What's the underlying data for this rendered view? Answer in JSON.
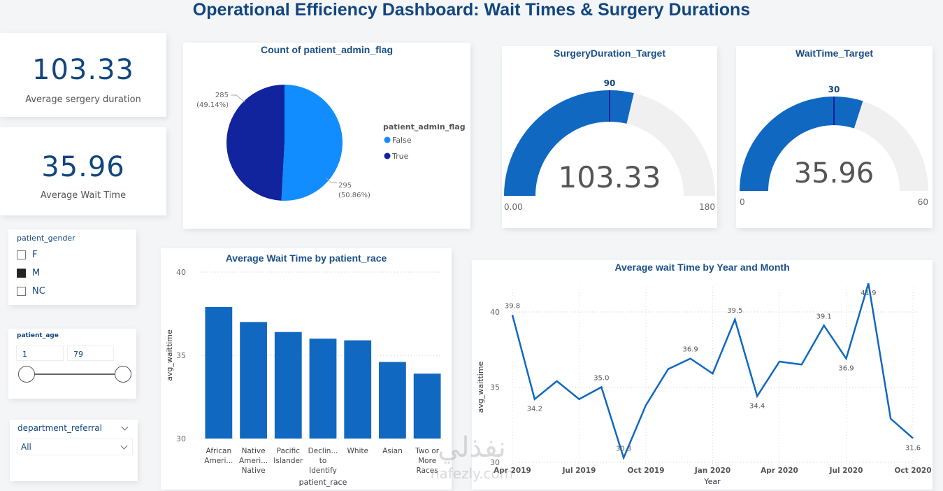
{
  "header": {
    "title": "Operational Efficiency Dashboard: Wait Times & Surgery Durations"
  },
  "kpis": [
    {
      "value": "103.33",
      "label": "Average sergery duration"
    },
    {
      "value": "35.96",
      "label": "Average Wait Time"
    }
  ],
  "slicers": {
    "gender": {
      "title": "patient_gender",
      "options": [
        {
          "label": "F",
          "checked": false
        },
        {
          "label": "M",
          "checked": true
        },
        {
          "label": "NC",
          "checked": false
        }
      ]
    },
    "age": {
      "title": "patient_age",
      "min_value": "1",
      "max_value": "79"
    },
    "department": {
      "title": "department_referral",
      "selected": "All"
    }
  },
  "colors": {
    "primary": "#1168c0",
    "light_blue": "#118dff",
    "dark_navy": "#12239e",
    "title_blue": "#12467e",
    "gauge_bg": "#f0f0f0"
  },
  "watermark": {
    "text": "nafezly.com"
  },
  "chart_data": [
    {
      "id": "pie",
      "type": "pie",
      "title": "Count of patient_admin_flag",
      "legend_title": "patient_admin_flag",
      "legend_position": "right",
      "slices": [
        {
          "label": "False",
          "value": 295,
          "percent": "50.86%",
          "color": "#118dff"
        },
        {
          "label": "True",
          "value": 285,
          "percent": "49.14%",
          "color": "#12239e"
        }
      ],
      "data_labels": [
        "295",
        "(50.86%)",
        "285",
        "(49.14%)"
      ]
    },
    {
      "id": "gauge_surgery",
      "type": "gauge",
      "title": "SurgeryDuration_Target",
      "value": 103.33,
      "value_label": "103.33",
      "min": 0,
      "min_label": "0.00",
      "max": 180,
      "max_label": "180",
      "target": 90,
      "target_label": "90"
    },
    {
      "id": "gauge_wait",
      "type": "gauge",
      "title": "WaitTime_Target",
      "value": 35.96,
      "value_label": "35.96",
      "min": 0,
      "min_label": "0",
      "max": 60,
      "max_label": "60",
      "target": 30,
      "target_label": "30"
    },
    {
      "id": "bar",
      "type": "bar",
      "title": "Average Wait Time by patient_race",
      "xlabel": "patient_race",
      "ylabel": "avg_waittime",
      "ylim": [
        30,
        40
      ],
      "yticks": [
        "30",
        "35",
        "40"
      ],
      "grid": true,
      "categories": [
        [
          "African",
          "Ameri..."
        ],
        [
          "Native",
          "Ameri...",
          "Native"
        ],
        [
          "Pacific",
          "Islander"
        ],
        [
          "Declin...",
          "to",
          "Identify"
        ],
        [
          "White"
        ],
        [
          "Asian"
        ],
        [
          "Two or",
          "More",
          "Races"
        ]
      ],
      "values": [
        37.9,
        37.0,
        36.4,
        36.0,
        35.9,
        34.6,
        33.9
      ]
    },
    {
      "id": "line",
      "type": "line",
      "title": "Average wait Time by Year and Month",
      "xlabel": "Year",
      "ylabel": "avg_waittime",
      "ylim": [
        30,
        42
      ],
      "yticks": [
        "30",
        "35",
        "40"
      ],
      "grid": true,
      "x": [
        "Apr 2019",
        "May 2019",
        "Jun 2019",
        "Jul 2019",
        "Aug 2019",
        "Sep 2019",
        "Oct 2019",
        "Nov 2019",
        "Dec 2019",
        "Jan 2020",
        "Feb 2020",
        "Mar 2020",
        "Apr 2020",
        "May 2020",
        "Jun 2020",
        "Jul 2020",
        "Aug 2020",
        "Sep 2020",
        "Oct 2020"
      ],
      "xtick_labels": [
        "Apr 2019",
        "Jul 2019",
        "Oct 2019",
        "Jan 2020",
        "Apr 2020",
        "Jul 2020",
        "Oct 2020"
      ],
      "values": [
        39.8,
        34.2,
        35.4,
        34.2,
        35.0,
        30.3,
        33.8,
        36.2,
        36.9,
        35.9,
        39.5,
        34.4,
        36.7,
        36.5,
        39.1,
        36.9,
        41.9,
        32.9,
        31.6
      ],
      "point_labels": [
        {
          "index": 0,
          "text": "39.8",
          "pos": "above"
        },
        {
          "index": 1,
          "text": "34.2",
          "pos": "below"
        },
        {
          "index": 4,
          "text": "35.0",
          "pos": "above"
        },
        {
          "index": 5,
          "text": "30.3",
          "pos": "above"
        },
        {
          "index": 8,
          "text": "36.9",
          "pos": "above"
        },
        {
          "index": 10,
          "text": "39.5",
          "pos": "above"
        },
        {
          "index": 11,
          "text": "34.4",
          "pos": "below"
        },
        {
          "index": 14,
          "text": "39.1",
          "pos": "above"
        },
        {
          "index": 15,
          "text": "36.9",
          "pos": "below"
        },
        {
          "index": 16,
          "text": "41.9",
          "pos": "below"
        },
        {
          "index": 18,
          "text": "31.6",
          "pos": "below"
        }
      ]
    }
  ]
}
